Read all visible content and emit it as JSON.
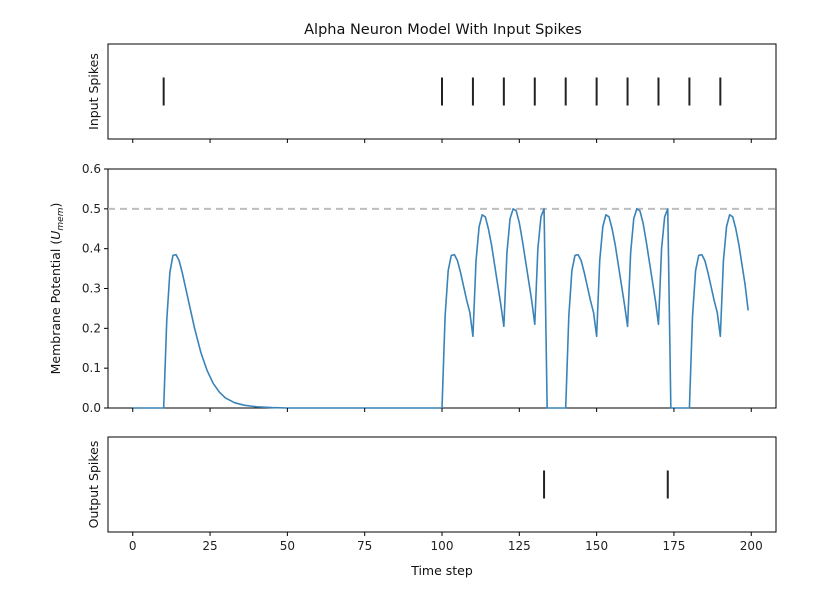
{
  "chart_data": {
    "type": "line",
    "title": "Alpha Neuron Model With Input Spikes",
    "xlabel": "Time step",
    "xlim": [
      -8,
      208
    ],
    "xticks": [
      0,
      25,
      50,
      75,
      100,
      125,
      150,
      175,
      200
    ],
    "threshold": 0.5,
    "colors": {
      "membrane": "#3a83b8",
      "spike": "#222222",
      "threshold": "#bdbdbd"
    },
    "panels": [
      {
        "id": "input",
        "ylabel": "Input Spikes",
        "spikes": [
          10,
          100,
          110,
          120,
          130,
          140,
          150,
          160,
          170,
          180,
          190
        ]
      },
      {
        "id": "membrane",
        "ylabel_main": "Membrane Potential (",
        "ylabel_var": "U",
        "ylabel_sub": "mem",
        "ylabel_close": ")",
        "ylim": [
          0,
          0.6
        ],
        "yticks": [
          "0.0",
          "0.1",
          "0.2",
          "0.3",
          "0.4",
          "0.5",
          "0.6"
        ],
        "series": [
          {
            "points": [
              [
                0,
                0.0
              ],
              [
                10,
                0.0
              ],
              [
                11,
                0.22
              ],
              [
                12,
                0.34
              ],
              [
                13,
                0.383
              ],
              [
                14,
                0.385
              ],
              [
                15,
                0.37
              ],
              [
                16,
                0.34
              ],
              [
                17,
                0.305
              ],
              [
                18,
                0.27
              ],
              [
                19,
                0.235
              ],
              [
                20,
                0.2
              ],
              [
                22,
                0.14
              ],
              [
                24,
                0.095
              ],
              [
                26,
                0.062
              ],
              [
                28,
                0.04
              ],
              [
                30,
                0.025
              ],
              [
                33,
                0.013
              ],
              [
                36,
                0.007
              ],
              [
                40,
                0.003
              ],
              [
                45,
                0.001
              ],
              [
                50,
                0.0
              ],
              [
                100,
                0.0
              ],
              [
                101,
                0.23
              ],
              [
                102,
                0.345
              ],
              [
                103,
                0.383
              ],
              [
                104,
                0.385
              ],
              [
                105,
                0.37
              ],
              [
                106,
                0.34
              ],
              [
                107,
                0.305
              ],
              [
                108,
                0.27
              ],
              [
                109,
                0.24
              ],
              [
                110,
                0.18
              ],
              [
                111,
                0.37
              ],
              [
                112,
                0.455
              ],
              [
                113,
                0.485
              ],
              [
                114,
                0.48
              ],
              [
                115,
                0.45
              ],
              [
                116,
                0.41
              ],
              [
                117,
                0.36
              ],
              [
                118,
                0.31
              ],
              [
                119,
                0.26
              ],
              [
                120,
                0.205
              ],
              [
                121,
                0.39
              ],
              [
                122,
                0.475
              ],
              [
                123,
                0.5
              ],
              [
                124,
                0.495
              ],
              [
                125,
                0.465
              ],
              [
                126,
                0.42
              ],
              [
                127,
                0.37
              ],
              [
                128,
                0.32
              ],
              [
                129,
                0.27
              ],
              [
                130,
                0.21
              ],
              [
                131,
                0.4
              ],
              [
                132,
                0.48
              ],
              [
                133,
                0.5
              ],
              [
                134,
                0.0
              ],
              [
                140,
                0.0
              ],
              [
                141,
                0.23
              ],
              [
                142,
                0.345
              ],
              [
                143,
                0.383
              ],
              [
                144,
                0.385
              ],
              [
                145,
                0.37
              ],
              [
                146,
                0.34
              ],
              [
                147,
                0.305
              ],
              [
                148,
                0.27
              ],
              [
                149,
                0.24
              ],
              [
                150,
                0.18
              ],
              [
                151,
                0.37
              ],
              [
                152,
                0.455
              ],
              [
                153,
                0.485
              ],
              [
                154,
                0.48
              ],
              [
                155,
                0.45
              ],
              [
                156,
                0.41
              ],
              [
                157,
                0.36
              ],
              [
                158,
                0.31
              ],
              [
                159,
                0.26
              ],
              [
                160,
                0.205
              ],
              [
                161,
                0.39
              ],
              [
                162,
                0.475
              ],
              [
                163,
                0.5
              ],
              [
                164,
                0.495
              ],
              [
                165,
                0.465
              ],
              [
                166,
                0.42
              ],
              [
                167,
                0.37
              ],
              [
                168,
                0.32
              ],
              [
                169,
                0.27
              ],
              [
                170,
                0.21
              ],
              [
                171,
                0.4
              ],
              [
                172,
                0.48
              ],
              [
                173,
                0.5
              ],
              [
                174,
                0.0
              ],
              [
                180,
                0.0
              ],
              [
                181,
                0.23
              ],
              [
                182,
                0.345
              ],
              [
                183,
                0.383
              ],
              [
                184,
                0.385
              ],
              [
                185,
                0.37
              ],
              [
                186,
                0.34
              ],
              [
                187,
                0.305
              ],
              [
                188,
                0.27
              ],
              [
                189,
                0.24
              ],
              [
                190,
                0.18
              ],
              [
                191,
                0.37
              ],
              [
                192,
                0.455
              ],
              [
                193,
                0.485
              ],
              [
                194,
                0.48
              ],
              [
                195,
                0.45
              ],
              [
                196,
                0.41
              ],
              [
                197,
                0.36
              ],
              [
                198,
                0.31
              ],
              [
                199,
                0.245
              ]
            ]
          }
        ]
      },
      {
        "id": "output",
        "ylabel": "Output Spikes",
        "spikes": [
          133,
          173
        ]
      }
    ]
  }
}
